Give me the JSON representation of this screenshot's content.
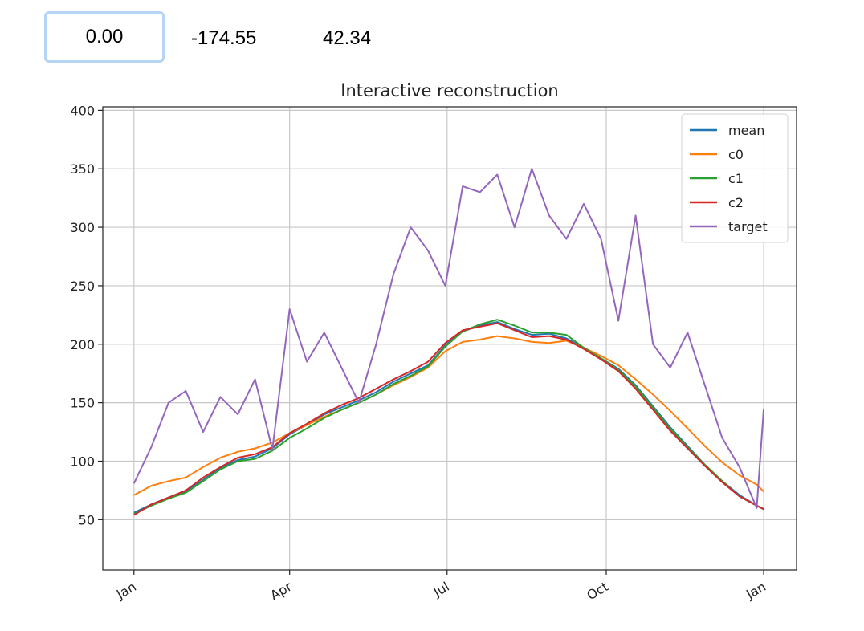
{
  "controls": {
    "input_value": "0.00",
    "readout_1": "-174.55",
    "readout_2": "42.34"
  },
  "chart_data": {
    "type": "line",
    "title": "Interactive reconstruction",
    "xlabel": "",
    "ylabel": "",
    "x_ticks": [
      "Jan",
      "Apr",
      "Jul",
      "Oct",
      "Jan"
    ],
    "x_tick_positions": [
      0,
      90,
      181,
      273,
      364
    ],
    "xlim": [
      -18,
      383
    ],
    "y_ticks": [
      50,
      100,
      150,
      200,
      250,
      300,
      350,
      400
    ],
    "ylim": [
      7,
      403
    ],
    "grid": true,
    "legend_position": "top-right",
    "x_day_index": [
      0,
      10,
      20,
      30,
      40,
      50,
      60,
      70,
      80,
      90,
      100,
      110,
      120,
      130,
      140,
      150,
      160,
      170,
      180,
      190,
      200,
      210,
      220,
      230,
      240,
      250,
      260,
      270,
      280,
      290,
      300,
      310,
      320,
      330,
      340,
      350,
      360,
      364
    ],
    "series": [
      {
        "name": "mean",
        "color": "#1f77b4",
        "values": [
          56,
          63,
          69,
          74,
          84,
          94,
          101,
          104,
          111,
          123,
          131,
          140,
          146,
          152,
          159,
          168,
          175,
          182,
          199,
          211,
          216,
          219,
          213,
          208,
          209,
          205,
          197,
          188,
          179,
          165,
          147,
          129,
          113,
          97,
          83,
          71,
          62,
          59
        ]
      },
      {
        "name": "c0",
        "color": "#ff7f0e",
        "values": [
          71,
          79,
          83,
          86,
          95,
          103,
          108,
          111,
          116,
          124,
          131,
          138,
          144,
          150,
          157,
          165,
          172,
          180,
          194,
          202,
          204,
          207,
          205,
          202,
          201,
          203,
          197,
          190,
          182,
          170,
          157,
          143,
          128,
          113,
          99,
          88,
          80,
          74
        ]
      },
      {
        "name": "c1",
        "color": "#2ca02c",
        "values": [
          55,
          62,
          68,
          73,
          83,
          93,
          100,
          102,
          109,
          120,
          128,
          137,
          144,
          150,
          157,
          166,
          173,
          181,
          198,
          211,
          217,
          221,
          216,
          210,
          210,
          208,
          197,
          188,
          178,
          164,
          146,
          128,
          112,
          97,
          83,
          70,
          62,
          59
        ]
      },
      {
        "name": "c2",
        "color": "#d62728",
        "values": [
          54,
          63,
          69,
          75,
          86,
          95,
          103,
          106,
          112,
          124,
          132,
          141,
          148,
          154,
          162,
          170,
          177,
          185,
          201,
          212,
          215,
          218,
          212,
          206,
          207,
          204,
          196,
          187,
          177,
          162,
          144,
          126,
          111,
          96,
          82,
          70,
          62,
          59
        ]
      },
      {
        "name": "target",
        "color": "#9467bd",
        "values": [
          81,
          112,
          150,
          160,
          125,
          155,
          140,
          170,
          110,
          230,
          185,
          210,
          180,
          150,
          200,
          260,
          300,
          280,
          250,
          335,
          330,
          345,
          300,
          350,
          310,
          290,
          320,
          290,
          220,
          310,
          200,
          180,
          210,
          165,
          120,
          95,
          60,
          145
        ]
      }
    ]
  }
}
